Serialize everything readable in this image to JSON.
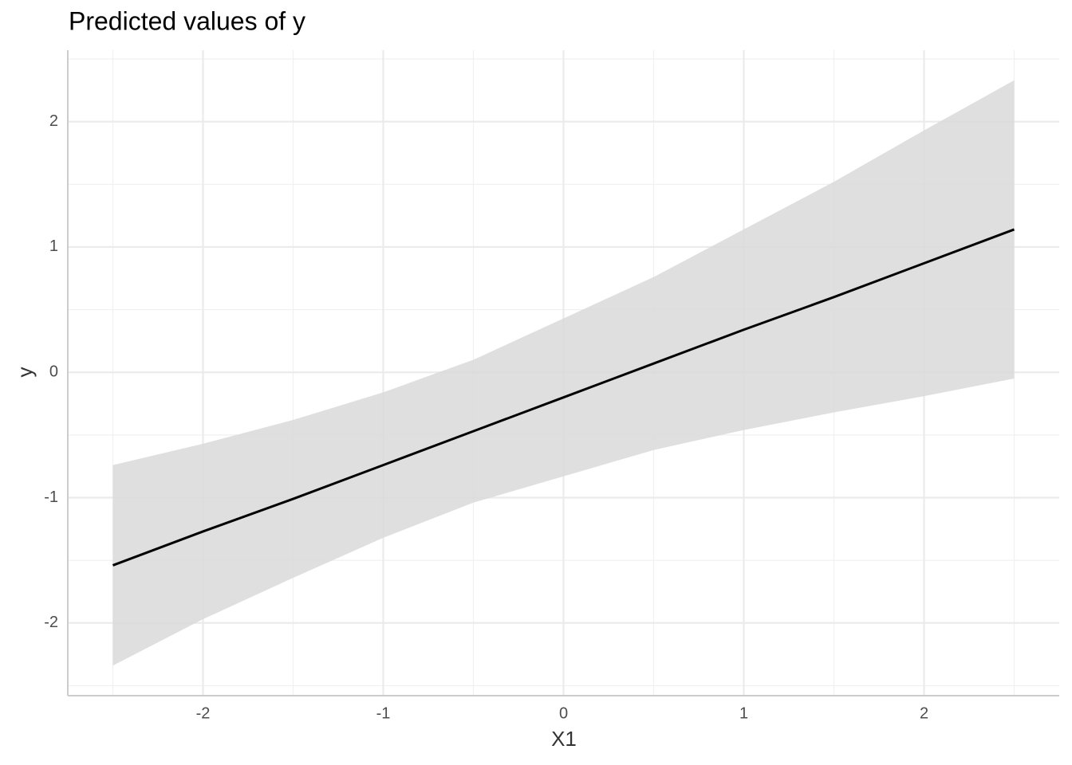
{
  "chart_data": {
    "type": "line",
    "title": "Predicted values of y",
    "x_label": "X1",
    "y_label": "y",
    "x": [
      -2.5,
      -2,
      -1.5,
      -1,
      -0.5,
      0,
      0.5,
      1,
      1.5,
      2,
      2.5
    ],
    "series": [
      {
        "name": "y",
        "color": "#000000",
        "band_color": "#d9d9d9",
        "values": [
          -1.54,
          -1.27,
          -1.01,
          -0.74,
          -0.47,
          -0.2,
          0.07,
          0.34,
          0.6,
          0.87,
          1.14
        ],
        "upper": [
          -0.74,
          -0.57,
          -0.38,
          -0.16,
          0.1,
          0.43,
          0.76,
          1.14,
          1.52,
          1.93,
          2.33
        ],
        "lower": [
          -2.34,
          -1.97,
          -1.64,
          -1.32,
          -1.04,
          -0.83,
          -0.62,
          -0.46,
          -0.32,
          -0.19,
          -0.05
        ]
      }
    ],
    "xlim": [
      -2.75,
      2.75
    ],
    "ylim": [
      -2.58,
      2.57
    ],
    "xticks": [
      -2,
      -1,
      0,
      1,
      2
    ],
    "yticks": [
      -2,
      -1,
      0,
      1,
      2
    ],
    "grid": true
  }
}
